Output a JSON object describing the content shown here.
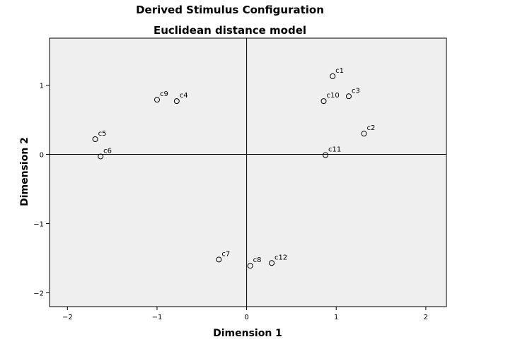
{
  "chart_data": {
    "type": "scatter",
    "title": "Derived Stimulus Configuration",
    "subtitle": "Euclidean distance model",
    "xlabel": "Dimension 1",
    "ylabel": "Dimension 2",
    "xlim": [
      -2.2,
      2.23
    ],
    "ylim": [
      -2.2,
      1.68
    ],
    "xticks": [
      -2,
      -1,
      0,
      1,
      2
    ],
    "yticks": [
      -2,
      -1,
      0,
      1
    ],
    "xtick_labels": [
      "−2",
      "−1",
      "0",
      "1",
      "2"
    ],
    "ytick_labels": [
      "−2",
      "−1",
      "0",
      "1"
    ],
    "grid": false,
    "reference_lines": {
      "x": 0,
      "y": 0
    },
    "marker": "open-circle",
    "background_color": "#efefef",
    "points": [
      {
        "label": "c1",
        "x": 0.96,
        "y": 1.13
      },
      {
        "label": "c2",
        "x": 1.31,
        "y": 0.3
      },
      {
        "label": "c3",
        "x": 1.14,
        "y": 0.84
      },
      {
        "label": "c4",
        "x": -0.78,
        "y": 0.77
      },
      {
        "label": "c5",
        "x": -1.69,
        "y": 0.22
      },
      {
        "label": "c6",
        "x": -1.63,
        "y": -0.03
      },
      {
        "label": "c7",
        "x": -0.31,
        "y": -1.52
      },
      {
        "label": "c8",
        "x": 0.04,
        "y": -1.61
      },
      {
        "label": "c9",
        "x": -1.0,
        "y": 0.79
      },
      {
        "label": "c10",
        "x": 0.86,
        "y": 0.77
      },
      {
        "label": "c11",
        "x": 0.88,
        "y": -0.01
      },
      {
        "label": "c12",
        "x": 0.28,
        "y": -1.57
      }
    ]
  }
}
